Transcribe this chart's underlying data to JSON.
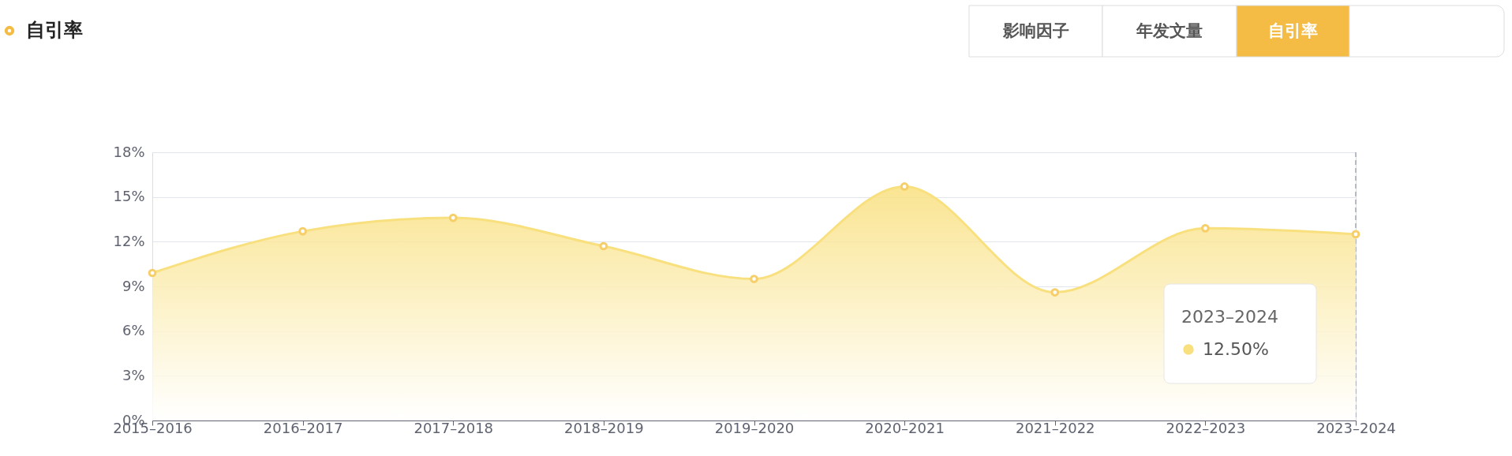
{
  "chart_data": {
    "type": "area",
    "title": "自引率",
    "categories": [
      "2015–2016",
      "2016–2017",
      "2017–2018",
      "2018–2019",
      "2019–2020",
      "2020–2021",
      "2021–2022",
      "2022–2023",
      "2023–2024"
    ],
    "series": [
      {
        "color": "#f9e07f",
        "values": [
          9.9,
          12.7,
          13.6,
          11.7,
          9.5,
          15.7,
          8.6,
          12.9,
          12.5
        ]
      }
    ],
    "ylim": [
      0,
      18
    ],
    "yticks": [
      {
        "value": 0,
        "label": "0%"
      },
      {
        "value": 3,
        "label": "3%"
      },
      {
        "value": 6,
        "label": "6%"
      },
      {
        "value": 9,
        "label": "9%"
      },
      {
        "value": 12,
        "label": "12%"
      },
      {
        "value": 15,
        "label": "15%"
      },
      {
        "value": 18,
        "label": "18%"
      }
    ],
    "grid": "y",
    "marker": "circle",
    "ref_lines": [
      {
        "axis": "x",
        "value": "2023–2024",
        "color": "#a0a8b8",
        "line_style": "dashed"
      }
    ],
    "annotations": [
      "影响因子",
      "年发文量",
      "自引率",
      "12.50%"
    ]
  }
}
